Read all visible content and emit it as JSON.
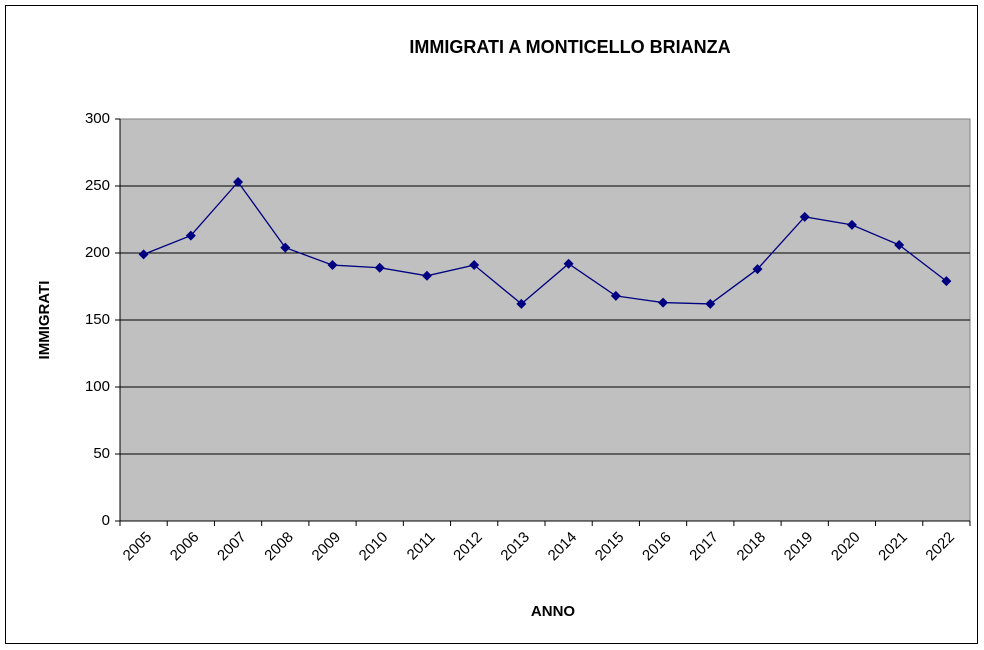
{
  "chart_data": {
    "type": "line",
    "title": "IMMIGRATI A MONTICELLO BRIANZA",
    "x_label": "ANNO",
    "y_label": "IMMIGRATI",
    "categories": [
      "2005",
      "2006",
      "2007",
      "2008",
      "2009",
      "2010",
      "2011",
      "2012",
      "2013",
      "2014",
      "2015",
      "2016",
      "2017",
      "2018",
      "2019",
      "2020",
      "2021",
      "2022"
    ],
    "values": [
      199,
      213,
      253,
      204,
      191,
      189,
      183,
      191,
      162,
      192,
      168,
      163,
      162,
      188,
      227,
      221,
      206,
      179
    ],
    "color": "#000080",
    "ylim": [
      0,
      300
    ],
    "yticks": [
      0,
      50,
      100,
      150,
      200,
      250,
      300
    ],
    "grid": true
  }
}
